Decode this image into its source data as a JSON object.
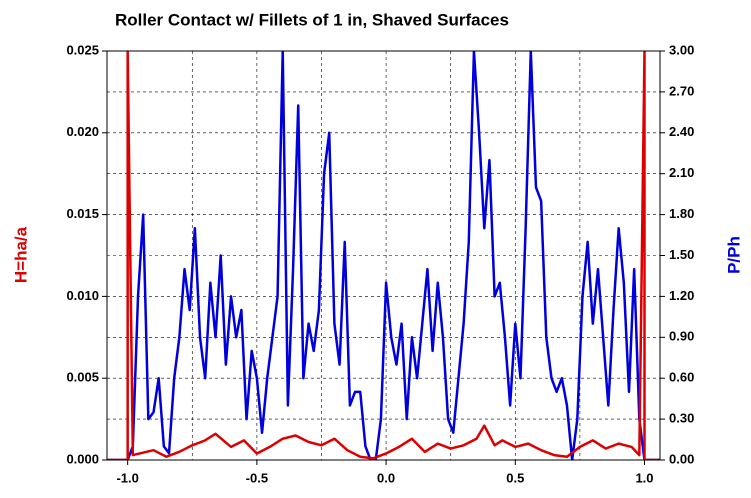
{
  "chart_data": {
    "type": "line",
    "title": "Roller Contact w/ Fillets of 1 in, Shaved Surfaces",
    "ylabel": "H=ha/a",
    "y2label": "P/Ph",
    "xlim": [
      -1.08,
      1.06
    ],
    "ylim": [
      0,
      0.025
    ],
    "y2lim": [
      0,
      3
    ],
    "xticks": [
      {
        "value": -1,
        "label": "-1.0"
      },
      {
        "value": -0.5,
        "label": "-0.5"
      },
      {
        "value": 0,
        "label": "0.0"
      },
      {
        "value": 0.5,
        "label": "0.5"
      },
      {
        "value": 1,
        "label": "1.0"
      }
    ],
    "xminor": [
      -0.75,
      -0.25,
      0.25,
      0.75
    ],
    "yticks": [
      {
        "value": 0,
        "label": "0.000"
      },
      {
        "value": 0.005,
        "label": "0.005"
      },
      {
        "value": 0.01,
        "label": "0.010"
      },
      {
        "value": 0.015,
        "label": "0.015"
      },
      {
        "value": 0.02,
        "label": "0.020"
      },
      {
        "value": 0.025,
        "label": "0.025"
      }
    ],
    "y2ticks": [
      {
        "value": 0,
        "label": "0.00"
      },
      {
        "value": 0.3,
        "label": "0.30"
      },
      {
        "value": 0.6,
        "label": "0.60"
      },
      {
        "value": 0.9,
        "label": "0.90"
      },
      {
        "value": 1.2,
        "label": "1.20"
      },
      {
        "value": 1.5,
        "label": "1.50"
      },
      {
        "value": 1.8,
        "label": "1.80"
      },
      {
        "value": 2.1,
        "label": "2.10"
      },
      {
        "value": 2.4,
        "label": "2.40"
      },
      {
        "value": 2.7,
        "label": "2.70"
      },
      {
        "value": 3,
        "label": "3.00"
      }
    ],
    "grid": true,
    "series": [
      {
        "color": "#0000dd",
        "axis": "y2",
        "x": [
          -1.08,
          -1.0,
          -0.98,
          -0.96,
          -0.94,
          -0.92,
          -0.9,
          -0.88,
          -0.86,
          -0.84,
          -0.82,
          -0.8,
          -0.78,
          -0.76,
          -0.74,
          -0.72,
          -0.7,
          -0.68,
          -0.66,
          -0.64,
          -0.62,
          -0.6,
          -0.58,
          -0.56,
          -0.54,
          -0.52,
          -0.5,
          -0.48,
          -0.46,
          -0.44,
          -0.42,
          -0.4,
          -0.38,
          -0.36,
          -0.34,
          -0.32,
          -0.3,
          -0.28,
          -0.26,
          -0.24,
          -0.22,
          -0.2,
          -0.18,
          -0.16,
          -0.14,
          -0.12,
          -0.1,
          -0.08,
          -0.06,
          -0.04,
          -0.02,
          0,
          0.02,
          0.04,
          0.06,
          0.08,
          0.1,
          0.12,
          0.14,
          0.16,
          0.18,
          0.2,
          0.22,
          0.24,
          0.26,
          0.28,
          0.3,
          0.32,
          0.34,
          0.36,
          0.38,
          0.4,
          0.42,
          0.44,
          0.46,
          0.48,
          0.5,
          0.52,
          0.54,
          0.56,
          0.58,
          0.6,
          0.62,
          0.64,
          0.66,
          0.68,
          0.7,
          0.72,
          0.74,
          0.76,
          0.78,
          0.8,
          0.82,
          0.84,
          0.86,
          0.88,
          0.9,
          0.92,
          0.94,
          0.96,
          0.98,
          1.0,
          1.06
        ],
        "values": [
          0,
          0,
          0.1,
          1.2,
          1.8,
          0.3,
          0.35,
          0.6,
          0.1,
          0.05,
          0.6,
          0.9,
          1.4,
          1.1,
          1.7,
          0.9,
          0.6,
          1.3,
          0.9,
          1.5,
          0.7,
          1.2,
          0.9,
          1.1,
          0.3,
          0.8,
          0.6,
          0.2,
          0.6,
          0.9,
          1.2,
          3.0,
          0.4,
          1.4,
          2.6,
          0.6,
          1.0,
          0.8,
          1.1,
          2.1,
          2.4,
          1.0,
          0.7,
          1.6,
          0.4,
          0.5,
          0.5,
          0.1,
          0.0,
          0.0,
          0.3,
          1.3,
          0.9,
          0.7,
          1.0,
          0.3,
          0.9,
          0.6,
          1.0,
          1.4,
          0.8,
          1.3,
          0.9,
          0.3,
          0.2,
          0.6,
          1.0,
          1.6,
          3.0,
          2.4,
          1.7,
          2.2,
          1.2,
          1.3,
          0.9,
          0.4,
          1.0,
          0.6,
          1.7,
          3.0,
          2.0,
          1.9,
          0.9,
          0.6,
          0.5,
          0.6,
          0.4,
          0.0,
          0.3,
          1.2,
          1.6,
          1.0,
          1.4,
          0.9,
          0.4,
          1.1,
          1.7,
          1.3,
          0.5,
          1.4,
          0.3,
          0,
          0
        ]
      },
      {
        "color": "#dd0000",
        "axis": "y",
        "x": [
          -1.08,
          -1.0,
          -1.0,
          -0.98,
          -0.9,
          -0.85,
          -0.8,
          -0.75,
          -0.7,
          -0.66,
          -0.6,
          -0.55,
          -0.5,
          -0.45,
          -0.4,
          -0.35,
          -0.3,
          -0.25,
          -0.2,
          -0.15,
          -0.1,
          -0.05,
          0,
          0.05,
          0.1,
          0.15,
          0.2,
          0.25,
          0.3,
          0.35,
          0.38,
          0.42,
          0.45,
          0.5,
          0.55,
          0.6,
          0.65,
          0.7,
          0.75,
          0.8,
          0.85,
          0.9,
          0.95,
          0.98,
          1.0,
          1.0,
          1.06
        ],
        "values": [
          0,
          0,
          0.025,
          0.0003,
          0.0006,
          0.0002,
          0.0005,
          0.0009,
          0.0012,
          0.0016,
          0.0008,
          0.0012,
          0.0004,
          0.0008,
          0.0013,
          0.0015,
          0.0011,
          0.0009,
          0.0013,
          0.0006,
          0.0002,
          0.0001,
          0.0004,
          0.0008,
          0.0013,
          0.0005,
          0.001,
          0.0007,
          0.0009,
          0.0013,
          0.0021,
          0.0009,
          0.0012,
          0.0008,
          0.001,
          0.0006,
          0.0003,
          0.0002,
          0.0008,
          0.0012,
          0.0007,
          0.001,
          0.0008,
          0.0003,
          0.025,
          0,
          0
        ]
      }
    ]
  }
}
